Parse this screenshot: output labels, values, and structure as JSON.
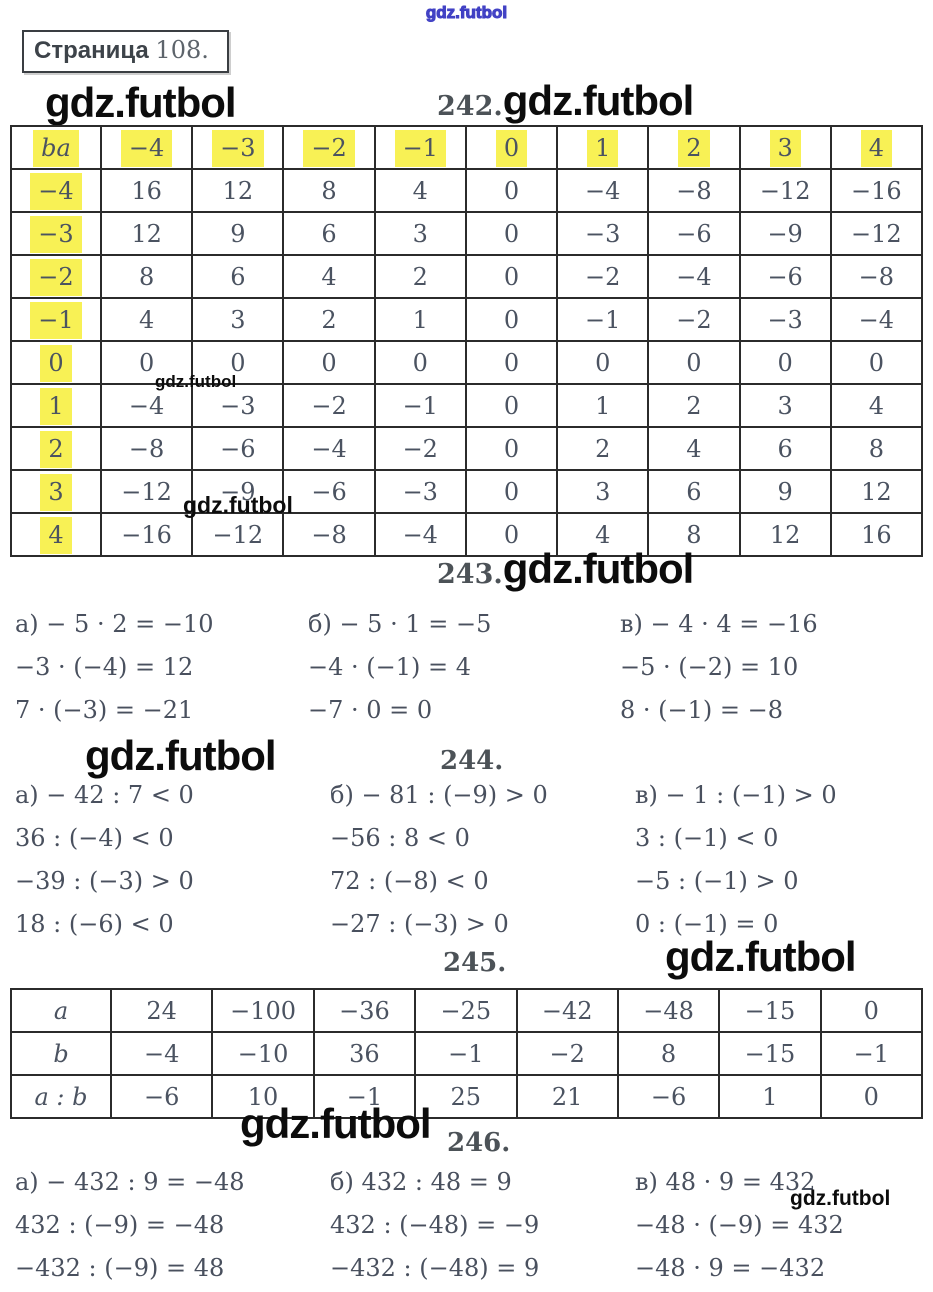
{
  "watermark": "gdz.futbol",
  "page_box": {
    "label": "Страница",
    "number": "108."
  },
  "sections": {
    "s242": "242.",
    "s243": "243.",
    "s244": "244.",
    "s245": "245.",
    "s246": "246."
  },
  "colors": {
    "highlight": "#f8f155",
    "watermark_blue": "#3c3cc3",
    "ink": "#4b5361"
  },
  "table242": {
    "corner": "ba",
    "col_headers": [
      "−4",
      "−3",
      "−2",
      "−1",
      "0",
      "1",
      "2",
      "3",
      "4"
    ],
    "rows": [
      {
        "header": "−4",
        "cells": [
          "16",
          "12",
          "8",
          "4",
          "0",
          "−4",
          "−8",
          "−12",
          "−16"
        ]
      },
      {
        "header": "−3",
        "cells": [
          "12",
          "9",
          "6",
          "3",
          "0",
          "−3",
          "−6",
          "−9",
          "−12"
        ]
      },
      {
        "header": "−2",
        "cells": [
          "8",
          "6",
          "4",
          "2",
          "0",
          "−2",
          "−4",
          "−6",
          "−8"
        ]
      },
      {
        "header": "−1",
        "cells": [
          "4",
          "3",
          "2",
          "1",
          "0",
          "−1",
          "−2",
          "−3",
          "−4"
        ]
      },
      {
        "header": "0",
        "cells": [
          "0",
          "0",
          "0",
          "0",
          "0",
          "0",
          "0",
          "0",
          "0"
        ]
      },
      {
        "header": "1",
        "cells": [
          "−4",
          "−3",
          "−2",
          "−1",
          "0",
          "1",
          "2",
          "3",
          "4"
        ]
      },
      {
        "header": "2",
        "cells": [
          "−8",
          "−6",
          "−4",
          "−2",
          "0",
          "2",
          "4",
          "6",
          "8"
        ]
      },
      {
        "header": "3",
        "cells": [
          "−12",
          "−9",
          "−6",
          "−3",
          "0",
          "3",
          "6",
          "9",
          "12"
        ]
      },
      {
        "header": "4",
        "cells": [
          "−16",
          "−12",
          "−8",
          "−4",
          "0",
          "4",
          "8",
          "12",
          "16"
        ]
      }
    ]
  },
  "eq243": {
    "a": [
      "а) − 5 · 2 = −10",
      "−3 · (−4) = 12",
      "7 · (−3) = −21"
    ],
    "b": [
      "б) − 5 · 1 = −5",
      "−4 · (−1) = 4",
      "−7 · 0 = 0"
    ],
    "v": [
      "в) − 4 · 4 = −16",
      "−5 · (−2) = 10",
      "8 · (−1) = −8"
    ]
  },
  "eq244": {
    "a": [
      "а) − 42 : 7 < 0",
      "36 : (−4) < 0",
      "−39 : (−3) > 0",
      "18 : (−6) < 0"
    ],
    "b": [
      "б) − 81 : (−9) > 0",
      "−56 : 8 < 0",
      "72 : (−8) < 0",
      "−27 : (−3) > 0"
    ],
    "v": [
      "в) − 1 : (−1) > 0",
      "3 : (−1) < 0",
      "−5 : (−1) > 0",
      "0 : (−1) = 0"
    ]
  },
  "table245": {
    "rows": [
      {
        "header": "a",
        "cells": [
          "24",
          "−100",
          "−36",
          "−25",
          "−42",
          "−48",
          "−15",
          "0"
        ]
      },
      {
        "header": "b",
        "cells": [
          "−4",
          "−10",
          "36",
          "−1",
          "−2",
          "8",
          "−15",
          "−1"
        ]
      },
      {
        "header": "a : b",
        "cells": [
          "−6",
          "10",
          "−1",
          "25",
          "21",
          "−6",
          "1",
          "0"
        ]
      }
    ]
  },
  "eq246": {
    "a": [
      "а) − 432 : 9 = −48",
      "432 : (−9) = −48",
      "−432 : (−9) = 48"
    ],
    "b": [
      "б) 432 : 48 = 9",
      "432 : (−48) = −9",
      "−432 : (−48) = 9"
    ],
    "v": [
      "в) 48 · 9 = 432",
      "−48 · (−9) = 432",
      "−48 · 9 = −432"
    ]
  }
}
